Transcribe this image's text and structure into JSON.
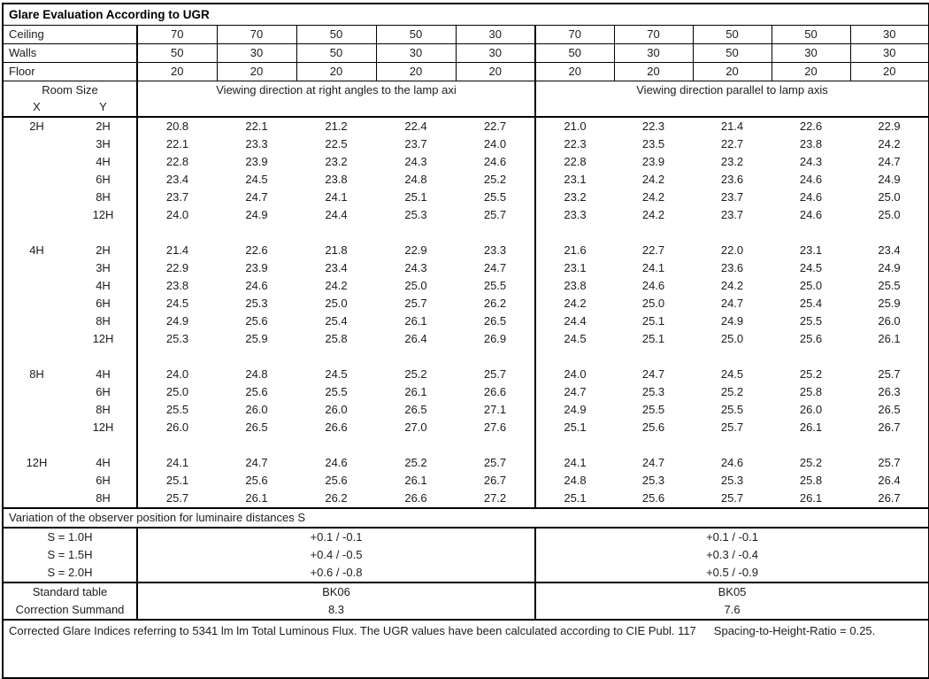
{
  "title": "Glare Evaluation According to UGR",
  "surfaces": [
    {
      "label": "Ceiling",
      "values": [
        "70",
        "70",
        "50",
        "50",
        "30",
        "70",
        "70",
        "50",
        "50",
        "30"
      ]
    },
    {
      "label": "Walls",
      "values": [
        "50",
        "30",
        "50",
        "30",
        "30",
        "50",
        "30",
        "50",
        "30",
        "30"
      ]
    },
    {
      "label": "Floor",
      "values": [
        "20",
        "20",
        "20",
        "20",
        "20",
        "20",
        "20",
        "20",
        "20",
        "20"
      ]
    }
  ],
  "headers": {
    "room_size": "Room Size",
    "x": "X",
    "y": "Y",
    "right_angles": "Viewing direction at right angles to the lamp axi",
    "parallel": "Viewing direction parallel to lamp axis"
  },
  "blocks": [
    {
      "x": "2H",
      "rows": [
        {
          "y": "2H",
          "right_angles": [
            "20.8",
            "22.1",
            "21.2",
            "22.4",
            "22.7"
          ],
          "parallel": [
            "21.0",
            "22.3",
            "21.4",
            "22.6",
            "22.9"
          ]
        },
        {
          "y": "3H",
          "right_angles": [
            "22.1",
            "23.3",
            "22.5",
            "23.7",
            "24.0"
          ],
          "parallel": [
            "22.3",
            "23.5",
            "22.7",
            "23.8",
            "24.2"
          ]
        },
        {
          "y": "4H",
          "right_angles": [
            "22.8",
            "23.9",
            "23.2",
            "24.3",
            "24.6"
          ],
          "parallel": [
            "22.8",
            "23.9",
            "23.2",
            "24.3",
            "24.7"
          ]
        },
        {
          "y": "6H",
          "right_angles": [
            "23.4",
            "24.5",
            "23.8",
            "24.8",
            "25.2"
          ],
          "parallel": [
            "23.1",
            "24.2",
            "23.6",
            "24.6",
            "24.9"
          ]
        },
        {
          "y": "8H",
          "right_angles": [
            "23.7",
            "24.7",
            "24.1",
            "25.1",
            "25.5"
          ],
          "parallel": [
            "23.2",
            "24.2",
            "23.7",
            "24.6",
            "25.0"
          ]
        },
        {
          "y": "12H",
          "right_angles": [
            "24.0",
            "24.9",
            "24.4",
            "25.3",
            "25.7"
          ],
          "parallel": [
            "23.3",
            "24.2",
            "23.7",
            "24.6",
            "25.0"
          ]
        }
      ]
    },
    {
      "x": "4H",
      "rows": [
        {
          "y": "2H",
          "right_angles": [
            "21.4",
            "22.6",
            "21.8",
            "22.9",
            "23.3"
          ],
          "parallel": [
            "21.6",
            "22.7",
            "22.0",
            "23.1",
            "23.4"
          ]
        },
        {
          "y": "3H",
          "right_angles": [
            "22.9",
            "23.9",
            "23.4",
            "24.3",
            "24.7"
          ],
          "parallel": [
            "23.1",
            "24.1",
            "23.6",
            "24.5",
            "24.9"
          ]
        },
        {
          "y": "4H",
          "right_angles": [
            "23.8",
            "24.6",
            "24.2",
            "25.0",
            "25.5"
          ],
          "parallel": [
            "23.8",
            "24.6",
            "24.2",
            "25.0",
            "25.5"
          ]
        },
        {
          "y": "6H",
          "right_angles": [
            "24.5",
            "25.3",
            "25.0",
            "25.7",
            "26.2"
          ],
          "parallel": [
            "24.2",
            "25.0",
            "24.7",
            "25.4",
            "25.9"
          ]
        },
        {
          "y": "8H",
          "right_angles": [
            "24.9",
            "25.6",
            "25.4",
            "26.1",
            "26.5"
          ],
          "parallel": [
            "24.4",
            "25.1",
            "24.9",
            "25.5",
            "26.0"
          ]
        },
        {
          "y": "12H",
          "right_angles": [
            "25.3",
            "25.9",
            "25.8",
            "26.4",
            "26.9"
          ],
          "parallel": [
            "24.5",
            "25.1",
            "25.0",
            "25.6",
            "26.1"
          ]
        }
      ]
    },
    {
      "x": "8H",
      "rows": [
        {
          "y": "4H",
          "right_angles": [
            "24.0",
            "24.8",
            "24.5",
            "25.2",
            "25.7"
          ],
          "parallel": [
            "24.0",
            "24.7",
            "24.5",
            "25.2",
            "25.7"
          ]
        },
        {
          "y": "6H",
          "right_angles": [
            "25.0",
            "25.6",
            "25.5",
            "26.1",
            "26.6"
          ],
          "parallel": [
            "24.7",
            "25.3",
            "25.2",
            "25.8",
            "26.3"
          ]
        },
        {
          "y": "8H",
          "right_angles": [
            "25.5",
            "26.0",
            "26.0",
            "26.5",
            "27.1"
          ],
          "parallel": [
            "24.9",
            "25.5",
            "25.5",
            "26.0",
            "26.5"
          ]
        },
        {
          "y": "12H",
          "right_angles": [
            "26.0",
            "26.5",
            "26.6",
            "27.0",
            "27.6"
          ],
          "parallel": [
            "25.1",
            "25.6",
            "25.7",
            "26.1",
            "26.7"
          ]
        }
      ]
    },
    {
      "x": "12H",
      "rows": [
        {
          "y": "4H",
          "right_angles": [
            "24.1",
            "24.7",
            "24.6",
            "25.2",
            "25.7"
          ],
          "parallel": [
            "24.1",
            "24.7",
            "24.6",
            "25.2",
            "25.7"
          ]
        },
        {
          "y": "6H",
          "right_angles": [
            "25.1",
            "25.6",
            "25.6",
            "26.1",
            "26.7"
          ],
          "parallel": [
            "24.8",
            "25.3",
            "25.3",
            "25.8",
            "26.4"
          ]
        },
        {
          "y": "8H",
          "right_angles": [
            "25.7",
            "26.1",
            "26.2",
            "26.6",
            "27.2"
          ],
          "parallel": [
            "25.1",
            "25.6",
            "25.7",
            "26.1",
            "26.7"
          ]
        }
      ]
    }
  ],
  "variation": {
    "heading": "Variation of the observer position for luminaire distances S",
    "rows": [
      {
        "label": "S = 1.0H",
        "right_angles": "+0.1 / -0.1",
        "parallel": "+0.1 / -0.1"
      },
      {
        "label": "S = 1.5H",
        "right_angles": "+0.4 / -0.5",
        "parallel": "+0.3 / -0.4"
      },
      {
        "label": "S = 2.0H",
        "right_angles": "+0.6 / -0.8",
        "parallel": "+0.5 / -0.9"
      }
    ]
  },
  "summary": {
    "rows": [
      {
        "label": "Standard table",
        "right_angles": "BK06",
        "parallel": "BK05"
      },
      {
        "label": "Correction Summand",
        "right_angles": "8.3",
        "parallel": "7.6"
      }
    ]
  },
  "footer": {
    "text": "Corrected Glare Indices referring to 5341 lm lm Total Luminous Flux. The UGR values have been calculated according to CIE Publ. 117",
    "spacing_note": "Spacing-to-Height-Ratio = 0.25."
  }
}
